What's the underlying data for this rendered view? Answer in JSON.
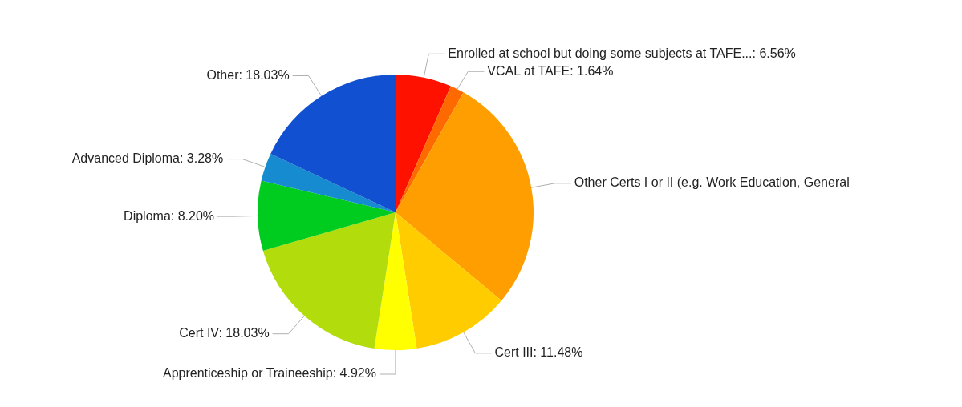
{
  "chart_data": {
    "type": "pie",
    "categories": [
      "Enrolled at school but doing some subjects at TAFE...",
      "VCAL at TAFE",
      "Other Certs I or II (e.g. Work Education, General",
      "Cert III",
      "Apprenticeship or Traineeship",
      "Cert IV",
      "Diploma",
      "Advanced Diploma",
      "Other"
    ],
    "values": [
      6.56,
      1.64,
      27.87,
      11.48,
      4.92,
      18.03,
      8.2,
      3.28,
      18.03
    ],
    "value_labels": [
      "6.56%",
      "1.64%",
      null,
      "11.48%",
      "4.92%",
      "18.03%",
      "8.20%",
      "3.28%",
      "18.03%"
    ],
    "colors": [
      "#ff1100",
      "#ff6a00",
      "#ff9e00",
      "#ffcc00",
      "#ffff00",
      "#b2dc0b",
      "#00cc1f",
      "#168bcf",
      "#1150d0"
    ],
    "legend": false
  }
}
